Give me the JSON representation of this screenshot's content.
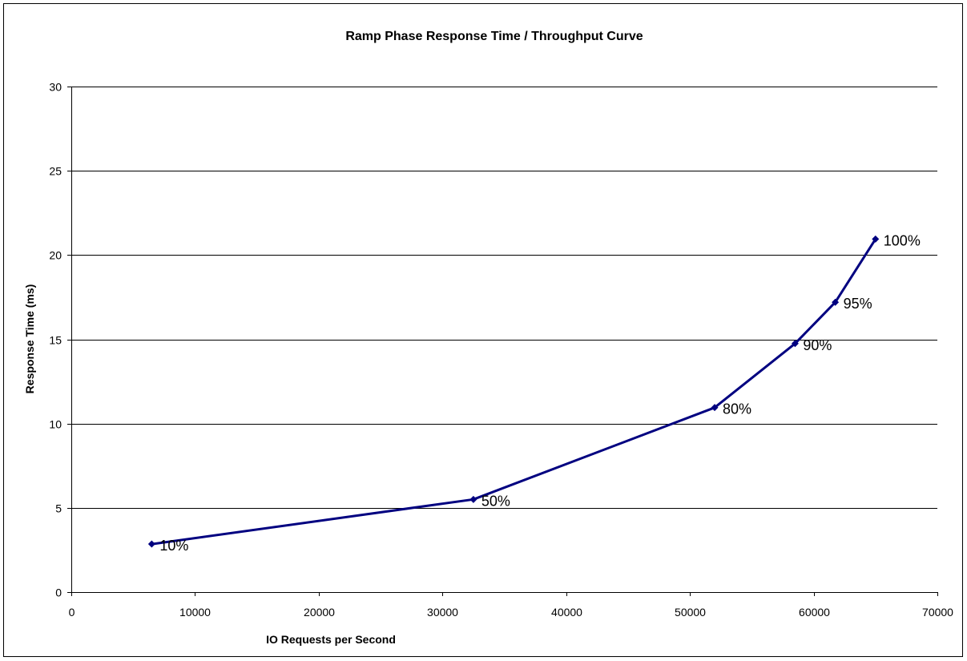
{
  "chart_data": {
    "type": "line",
    "title": "Ramp Phase Response Time / Throughput Curve",
    "xlabel": "IO Requests per Second",
    "ylabel": "Response Time (ms)",
    "xlim": [
      0,
      70000
    ],
    "ylim": [
      0,
      30
    ],
    "xticks": [
      0,
      10000,
      20000,
      30000,
      40000,
      50000,
      60000,
      70000
    ],
    "yticks": [
      0,
      5,
      10,
      15,
      20,
      25,
      30
    ],
    "grid": "horizontal",
    "legend": "none",
    "series_color": "#000080",
    "gridline_color": "#000000",
    "series": [
      {
        "points": [
          {
            "x": 6500,
            "y": 2.85,
            "label": "10%"
          },
          {
            "x": 32500,
            "y": 5.5,
            "label": "50%"
          },
          {
            "x": 52000,
            "y": 10.95,
            "label": "80%"
          },
          {
            "x": 58500,
            "y": 14.75,
            "label": "90%"
          },
          {
            "x": 61750,
            "y": 17.2,
            "label": "95%"
          },
          {
            "x": 65000,
            "y": 20.95,
            "label": "100%"
          }
        ]
      }
    ]
  }
}
